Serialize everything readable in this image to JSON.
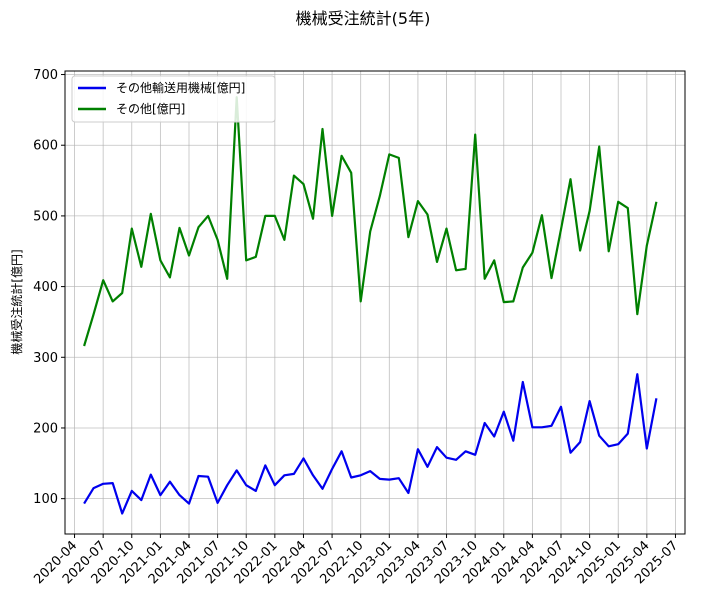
{
  "chart_data": {
    "type": "line",
    "title": "機械受注統計(5年)",
    "xlabel": "",
    "ylabel": "機械受注統計[億円]",
    "ylim": [
      50,
      705
    ],
    "yticks": [
      100,
      200,
      300,
      400,
      500,
      600,
      700
    ],
    "xlim": [
      "2020-03",
      "2025-08"
    ],
    "xticks": [
      "2020-04",
      "2020-07",
      "2020-10",
      "2021-01",
      "2021-04",
      "2021-07",
      "2021-10",
      "2022-01",
      "2022-04",
      "2022-07",
      "2022-10",
      "2023-01",
      "2023-04",
      "2023-07",
      "2023-10",
      "2024-01",
      "2024-04",
      "2024-07",
      "2024-10",
      "2025-01",
      "2025-04",
      "2025-07"
    ],
    "grid": true,
    "legend_position": "top-left",
    "x": [
      "2020-05",
      "2020-06",
      "2020-07",
      "2020-08",
      "2020-09",
      "2020-10",
      "2020-11",
      "2020-12",
      "2021-01",
      "2021-02",
      "2021-03",
      "2021-04",
      "2021-05",
      "2021-06",
      "2021-07",
      "2021-08",
      "2021-09",
      "2021-10",
      "2021-11",
      "2021-12",
      "2022-01",
      "2022-02",
      "2022-03",
      "2022-04",
      "2022-05",
      "2022-06",
      "2022-07",
      "2022-08",
      "2022-09",
      "2022-10",
      "2022-11",
      "2022-12",
      "2023-01",
      "2023-02",
      "2023-03",
      "2023-04",
      "2023-05",
      "2023-06",
      "2023-07",
      "2023-08",
      "2023-09",
      "2023-10",
      "2023-11",
      "2023-12",
      "2024-01",
      "2024-02",
      "2024-03",
      "2024-04",
      "2024-05",
      "2024-06",
      "2024-07",
      "2024-08",
      "2024-09",
      "2024-10",
      "2024-11",
      "2024-12",
      "2025-01",
      "2025-02",
      "2025-03",
      "2025-04",
      "2025-05"
    ],
    "series": [
      {
        "name": "その他輸送用機械[億円]",
        "color": "#0000ee",
        "values": [
          93,
          115,
          121,
          122,
          79,
          111,
          98,
          134,
          105,
          124,
          105,
          93,
          132,
          131,
          94,
          119,
          140,
          119,
          111,
          147,
          119,
          133,
          135,
          157,
          133,
          114,
          142,
          167,
          130,
          133,
          139,
          128,
          127,
          129,
          108,
          170,
          145,
          173,
          158,
          155,
          167,
          162,
          207,
          188,
          223,
          182,
          265,
          201,
          201,
          203,
          230,
          165,
          180,
          238,
          189,
          174,
          177,
          192,
          276,
          171,
          242
        ]
      },
      {
        "name": "その他[億円]",
        "color": "#008000",
        "values": [
          316,
          361,
          409,
          379,
          391,
          482,
          428,
          503,
          437,
          413,
          483,
          444,
          484,
          500,
          466,
          411,
          668,
          437,
          442,
          500,
          500,
          466,
          557,
          545,
          496,
          623,
          500,
          585,
          561,
          379,
          478,
          528,
          587,
          582,
          470,
          521,
          502,
          435,
          482,
          423,
          425,
          615,
          411,
          437,
          378,
          379,
          427,
          448,
          501,
          412,
          481,
          552,
          451,
          507,
          598,
          450,
          520,
          511,
          361,
          458,
          520
        ]
      }
    ]
  }
}
